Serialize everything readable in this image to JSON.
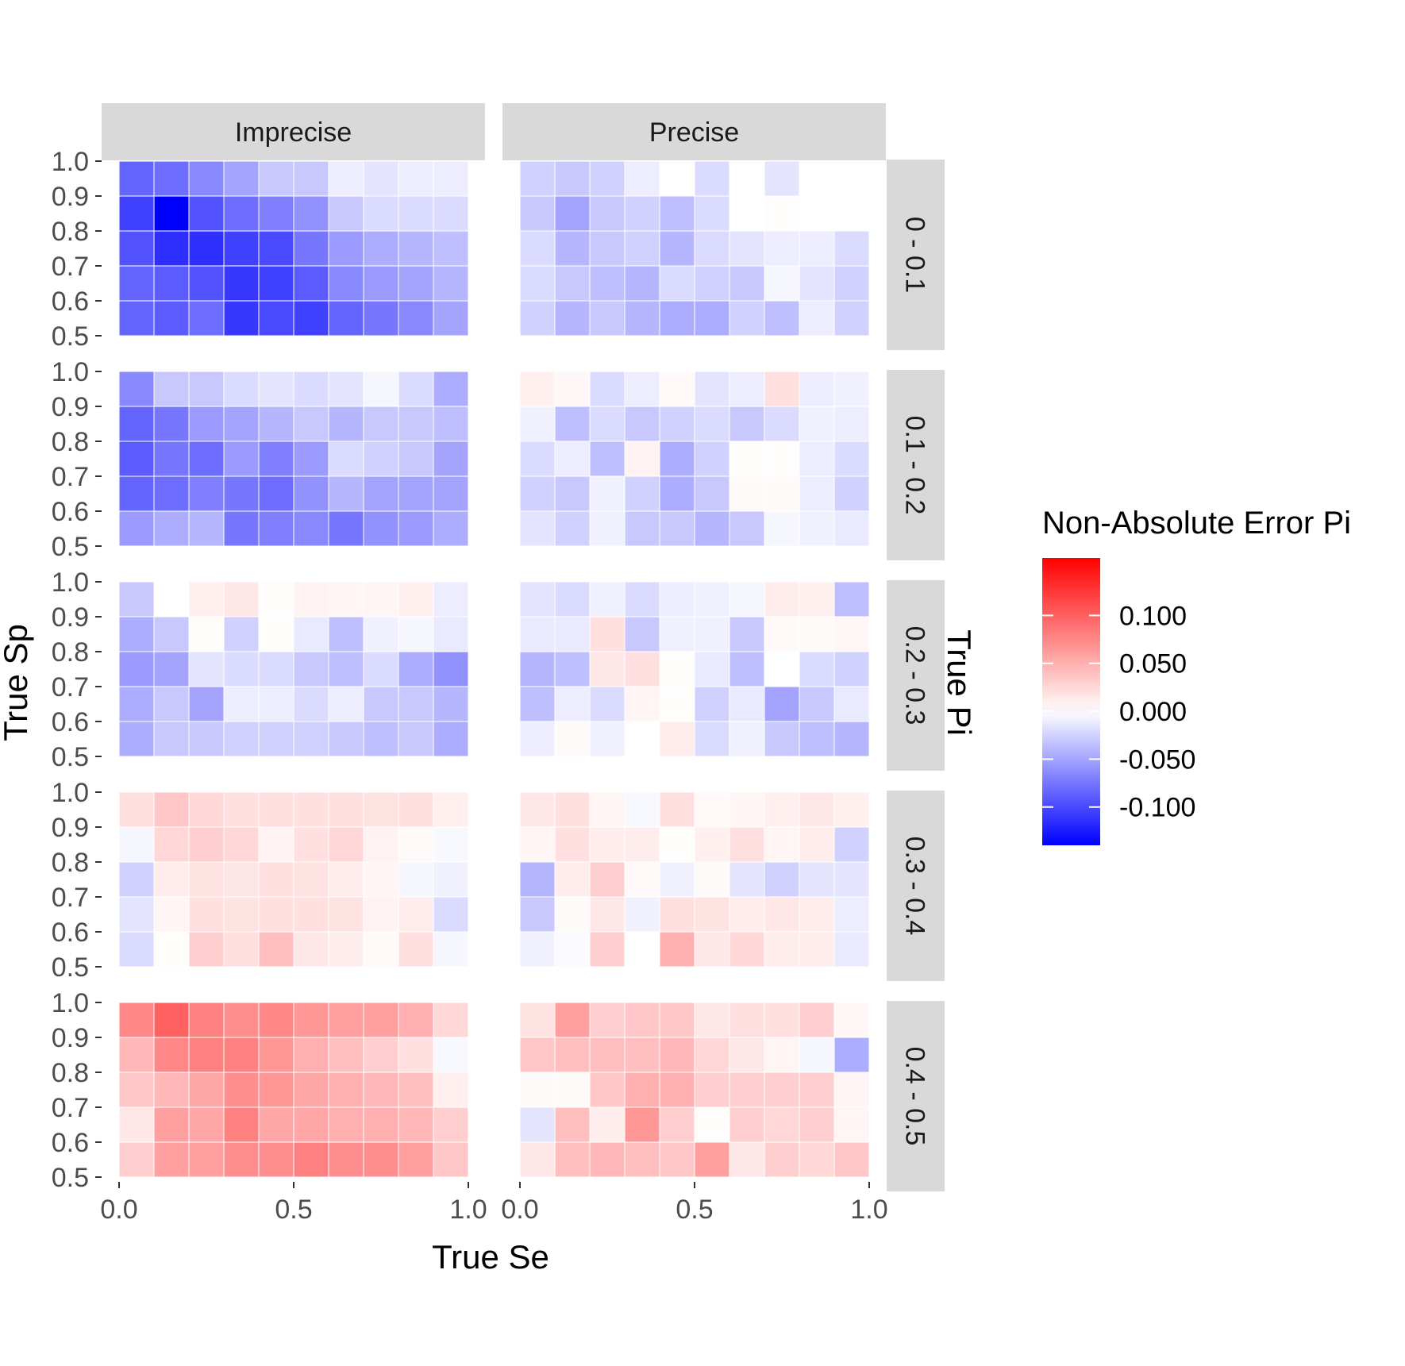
{
  "chart_data": {
    "type": "heatmap",
    "xlabel": "True Se",
    "ylabel": "True Sp",
    "facet_row_title": "True Pi",
    "facet_columns": [
      "Imprecise",
      "Precise"
    ],
    "facet_rows": [
      "0 - 0.1",
      "0.1 - 0.2",
      "0.2 - 0.3",
      "0.3 - 0.4",
      "0.4 - 0.5"
    ],
    "x_values": [
      0.0,
      0.1,
      0.2,
      0.3,
      0.4,
      0.5,
      0.6,
      0.7,
      0.8,
      0.9
    ],
    "y_values": [
      0.55,
      0.65,
      0.75,
      0.85,
      0.95
    ],
    "x_ticks": [
      "0.0",
      "0.5",
      "1.0"
    ],
    "x_tick_values": [
      0,
      0.5,
      1
    ],
    "y_ticks": [
      "0.5",
      "0.6",
      "0.7",
      "0.8",
      "0.9",
      "1.0"
    ],
    "y_tick_values": [
      0.5,
      0.6,
      0.7,
      0.8,
      0.9,
      1.0
    ],
    "xlim": [
      0,
      1
    ],
    "ylim": [
      0.5,
      1.0
    ],
    "grid": false,
    "legend": {
      "title": "Non-Absolute Error Pi",
      "position": "right",
      "labels": [
        "0.100",
        "0.050",
        "0.000",
        "-0.050",
        "-0.100"
      ],
      "breaks": [
        0.1,
        0.05,
        0,
        -0.05,
        -0.1
      ],
      "range": [
        -0.14,
        0.16
      ],
      "low_color": "#0000ff",
      "mid_color": "#ffffff",
      "high_color": "#ff0000"
    },
    "strip_color": "#d9d9d9",
    "panels": {
      "Imprecise": {
        "0 - 0.1": [
          [
            -0.085,
            -0.09,
            -0.08,
            -0.11,
            -0.1,
            -0.105,
            -0.085,
            -0.075,
            -0.065,
            -0.05
          ],
          [
            -0.085,
            -0.09,
            -0.095,
            -0.11,
            -0.105,
            -0.09,
            -0.065,
            -0.055,
            -0.05,
            -0.04
          ],
          [
            -0.095,
            -0.115,
            -0.115,
            -0.105,
            -0.1,
            -0.075,
            -0.055,
            -0.045,
            -0.04,
            -0.035
          ],
          [
            -0.105,
            -0.14,
            -0.095,
            -0.08,
            -0.07,
            -0.06,
            -0.03,
            -0.02,
            -0.02,
            -0.02
          ],
          [
            -0.085,
            -0.08,
            -0.065,
            -0.05,
            -0.03,
            -0.03,
            -0.01,
            -0.015,
            -0.01,
            -0.01
          ]
        ],
        "0.1 - 0.2": [
          [
            -0.055,
            -0.045,
            -0.04,
            -0.075,
            -0.07,
            -0.065,
            -0.075,
            -0.06,
            -0.055,
            -0.045
          ],
          [
            -0.085,
            -0.08,
            -0.07,
            -0.075,
            -0.08,
            -0.06,
            -0.04,
            -0.05,
            -0.05,
            -0.05
          ],
          [
            -0.09,
            -0.075,
            -0.08,
            -0.055,
            -0.07,
            -0.055,
            -0.02,
            -0.025,
            -0.03,
            -0.05
          ],
          [
            -0.085,
            -0.075,
            -0.055,
            -0.05,
            -0.04,
            -0.03,
            -0.04,
            -0.03,
            -0.03,
            -0.035
          ],
          [
            -0.065,
            -0.03,
            -0.03,
            -0.02,
            -0.015,
            -0.02,
            -0.015,
            -0.005,
            -0.02,
            -0.045
          ]
        ],
        "0.2 - 0.3": [
          [
            -0.045,
            -0.03,
            -0.03,
            -0.025,
            -0.025,
            -0.025,
            -0.03,
            -0.035,
            -0.03,
            -0.045
          ],
          [
            -0.045,
            -0.03,
            -0.05,
            -0.01,
            -0.01,
            -0.02,
            -0.01,
            -0.03,
            -0.03,
            -0.04
          ],
          [
            -0.055,
            -0.05,
            -0.015,
            -0.02,
            -0.02,
            -0.03,
            -0.035,
            -0.02,
            -0.045,
            -0.06
          ],
          [
            -0.045,
            -0.03,
            0.002,
            -0.025,
            0.002,
            -0.012,
            -0.035,
            -0.008,
            -0.005,
            -0.012
          ],
          [
            -0.03,
            0.0,
            0.01,
            0.015,
            0.002,
            0.008,
            0.006,
            0.006,
            0.01,
            -0.01
          ]
        ],
        "0.3 - 0.4": [
          [
            -0.02,
            0.002,
            0.03,
            0.02,
            0.04,
            0.015,
            0.012,
            0.004,
            0.02,
            -0.005
          ],
          [
            -0.015,
            0.006,
            0.02,
            0.018,
            0.02,
            0.02,
            0.018,
            0.008,
            0.012,
            -0.02
          ],
          [
            -0.025,
            0.012,
            0.018,
            0.016,
            0.02,
            0.018,
            0.012,
            0.006,
            -0.005,
            -0.008
          ],
          [
            -0.005,
            0.025,
            0.03,
            0.025,
            0.008,
            0.02,
            0.025,
            0.008,
            0.004,
            -0.004
          ],
          [
            0.02,
            0.035,
            0.025,
            0.02,
            0.02,
            0.02,
            0.02,
            0.018,
            0.02,
            0.01
          ]
        ],
        "0.4 - 0.5": [
          [
            0.03,
            0.06,
            0.06,
            0.07,
            0.07,
            0.08,
            0.07,
            0.07,
            0.06,
            0.035
          ],
          [
            0.015,
            0.06,
            0.055,
            0.08,
            0.055,
            0.055,
            0.05,
            0.05,
            0.045,
            0.03
          ],
          [
            0.035,
            0.045,
            0.055,
            0.07,
            0.065,
            0.055,
            0.05,
            0.045,
            0.04,
            0.01
          ],
          [
            0.045,
            0.075,
            0.08,
            0.08,
            0.065,
            0.05,
            0.04,
            0.03,
            0.02,
            -0.004
          ],
          [
            0.075,
            0.1,
            0.08,
            0.07,
            0.075,
            0.065,
            0.06,
            0.06,
            0.05,
            0.025
          ]
        ]
      },
      "Precise": {
        "0 - 0.1": [
          [
            -0.025,
            -0.04,
            -0.03,
            -0.04,
            -0.045,
            -0.045,
            -0.025,
            -0.035,
            -0.01,
            -0.025
          ],
          [
            -0.02,
            -0.03,
            -0.035,
            -0.04,
            -0.02,
            -0.025,
            -0.03,
            -0.005,
            -0.015,
            -0.025
          ],
          [
            -0.02,
            -0.04,
            -0.03,
            -0.025,
            -0.04,
            -0.02,
            -0.015,
            -0.01,
            -0.01,
            -0.02
          ],
          [
            -0.03,
            -0.05,
            -0.03,
            -0.025,
            -0.035,
            -0.02,
            0.0,
            0.002,
            0.0,
            0.0
          ],
          [
            -0.025,
            -0.03,
            -0.025,
            -0.01,
            0.0,
            -0.02,
            0.0,
            -0.015,
            0.0,
            0.0
          ]
        ],
        "0.1 - 0.2": [
          [
            -0.015,
            -0.025,
            -0.008,
            -0.03,
            -0.03,
            -0.04,
            -0.03,
            -0.005,
            -0.008,
            -0.012
          ],
          [
            -0.025,
            -0.03,
            -0.008,
            -0.025,
            -0.045,
            -0.03,
            0.003,
            0.003,
            -0.01,
            -0.025
          ],
          [
            -0.02,
            -0.01,
            -0.035,
            0.008,
            -0.045,
            -0.025,
            0.002,
            0.002,
            -0.01,
            -0.02
          ],
          [
            -0.008,
            -0.035,
            -0.02,
            -0.03,
            -0.025,
            -0.02,
            -0.03,
            -0.02,
            -0.008,
            -0.01
          ],
          [
            0.01,
            0.005,
            -0.02,
            -0.01,
            0.004,
            -0.015,
            -0.01,
            0.02,
            -0.01,
            -0.008
          ]
        ],
        "0.2 - 0.3": [
          [
            -0.01,
            0.003,
            -0.008,
            0.0,
            0.012,
            -0.02,
            -0.008,
            -0.03,
            -0.035,
            -0.04
          ],
          [
            -0.035,
            -0.01,
            -0.02,
            0.006,
            0.002,
            -0.025,
            -0.012,
            -0.05,
            -0.03,
            -0.012
          ],
          [
            -0.04,
            -0.035,
            0.015,
            0.02,
            0.002,
            -0.012,
            -0.035,
            0.0,
            -0.02,
            -0.025
          ],
          [
            -0.012,
            -0.012,
            0.02,
            -0.03,
            -0.008,
            -0.008,
            -0.03,
            0.004,
            0.003,
            0.005
          ],
          [
            -0.015,
            -0.02,
            -0.008,
            -0.02,
            -0.01,
            -0.008,
            -0.005,
            0.012,
            0.01,
            -0.035
          ]
        ],
        "0.3 - 0.4": [
          [
            -0.008,
            -0.002,
            0.03,
            0.0,
            0.05,
            0.015,
            0.025,
            0.012,
            0.012,
            -0.012
          ],
          [
            -0.03,
            0.003,
            0.015,
            -0.008,
            0.02,
            0.018,
            0.012,
            0.015,
            0.012,
            -0.01
          ],
          [
            -0.04,
            0.012,
            0.03,
            0.004,
            -0.008,
            0.003,
            -0.015,
            -0.025,
            -0.015,
            -0.015
          ],
          [
            0.006,
            0.02,
            0.012,
            0.012,
            0.002,
            0.01,
            0.02,
            0.006,
            0.012,
            -0.025
          ],
          [
            0.015,
            0.02,
            0.006,
            -0.004,
            0.02,
            0.004,
            0.006,
            0.01,
            0.015,
            0.01
          ]
        ],
        "0.4 - 0.5": [
          [
            0.015,
            0.04,
            0.045,
            0.04,
            0.035,
            0.06,
            0.015,
            0.03,
            0.025,
            0.035
          ],
          [
            -0.015,
            0.04,
            0.012,
            0.065,
            0.03,
            0.002,
            0.03,
            0.025,
            0.03,
            0.006
          ],
          [
            0.003,
            0.003,
            0.035,
            0.05,
            0.05,
            0.03,
            0.03,
            0.03,
            0.03,
            0.006
          ],
          [
            0.035,
            0.04,
            0.04,
            0.04,
            0.045,
            0.025,
            0.015,
            0.006,
            -0.005,
            -0.045
          ],
          [
            0.018,
            0.06,
            0.03,
            0.035,
            0.035,
            0.015,
            0.02,
            0.02,
            0.03,
            0.005
          ]
        ]
      }
    }
  }
}
